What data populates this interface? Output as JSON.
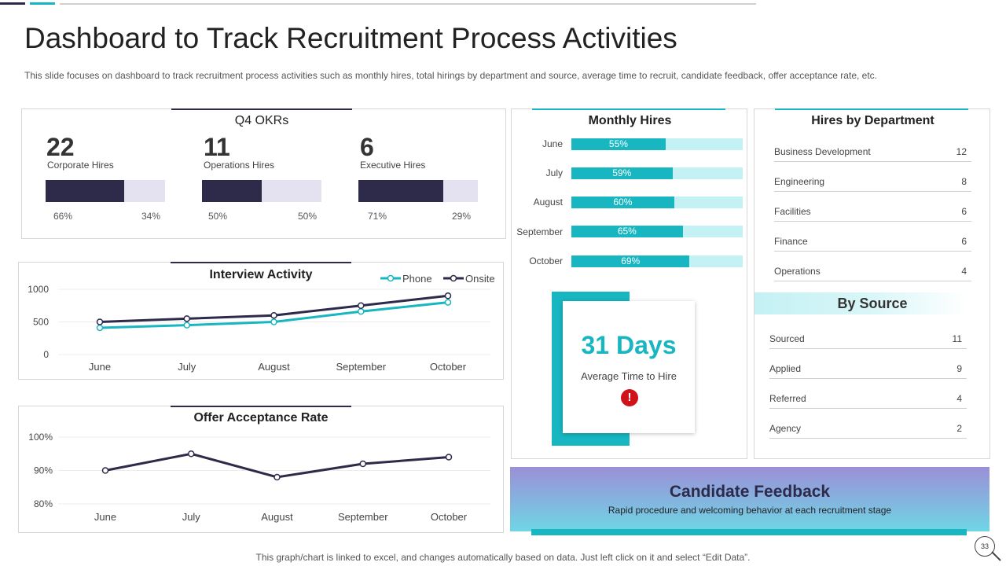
{
  "title": "Dashboard to Track Recruitment Process Activities",
  "subtitle": "This slide focuses on dashboard to track recruitment process activities such as monthly hires, total hirings by department and source, average time to recruit, candidate feedback, offer acceptance rate, etc.",
  "okr": {
    "title": "Q4 OKRs",
    "items": [
      {
        "value": "22",
        "label": "Corporate Hires",
        "filled": 66,
        "filled_label": "66%",
        "remaining_label": "34%"
      },
      {
        "value": "11",
        "label": "Operations Hires",
        "filled": 50,
        "filled_label": "50%",
        "remaining_label": "50%"
      },
      {
        "value": "6",
        "label": "Executive Hires",
        "filled": 71,
        "filled_label": "71%",
        "remaining_label": "29%"
      }
    ]
  },
  "monthly_hires": {
    "title": "Monthly Hires",
    "items": [
      {
        "month": "June",
        "value": 55,
        "label": "55%"
      },
      {
        "month": "July",
        "value": 59,
        "label": "59%"
      },
      {
        "month": "August",
        "value": 60,
        "label": "60%"
      },
      {
        "month": "September",
        "value": 65,
        "label": "65%"
      },
      {
        "month": "October",
        "value": 69,
        "label": "69%"
      }
    ]
  },
  "hires_by_department": {
    "title": "Hires by Department",
    "items": [
      {
        "name": "Business Development",
        "value": "12"
      },
      {
        "name": "Engineering",
        "value": "8"
      },
      {
        "name": "Facilities",
        "value": "6"
      },
      {
        "name": "Finance",
        "value": "6"
      },
      {
        "name": "Operations",
        "value": "4"
      }
    ]
  },
  "by_source": {
    "title": "By Source",
    "items": [
      {
        "name": "Sourced",
        "value": "11"
      },
      {
        "name": "Applied",
        "value": "9"
      },
      {
        "name": "Referred",
        "value": "4"
      },
      {
        "name": "Agency",
        "value": "2"
      }
    ]
  },
  "time_to_hire": {
    "value": "31 Days",
    "label": "Average Time to Hire",
    "icon": "exclamation-icon",
    "icon_glyph": "!"
  },
  "candidate_feedback": {
    "title": "Candidate Feedback",
    "text": "Rapid procedure  and welcoming behavior  at each recruitment stage"
  },
  "footer": "This graph/chart is linked to excel,  and changes automatically based on data. Just left click on it and select “Edit Data”.",
  "page_number": "33",
  "colors": {
    "navy": "#2d2a4a",
    "teal": "#17b6c1",
    "light_teal": "#c4f1f4",
    "alert_red": "#d0121b"
  },
  "chart_data": [
    {
      "type": "line",
      "title": "Interview Activity",
      "categories": [
        "June",
        "July",
        "August",
        "September",
        "October"
      ],
      "series": [
        {
          "name": "Phone",
          "values": [
            410,
            450,
            500,
            660,
            800
          ],
          "color": "#17b6c1"
        },
        {
          "name": "Onsite",
          "values": [
            500,
            550,
            600,
            750,
            900
          ],
          "color": "#2d2a4a"
        }
      ],
      "ylim": [
        0,
        1000
      ],
      "yticks": [
        0,
        500,
        1000
      ],
      "ytick_labels": [
        "0",
        "500",
        "1000"
      ],
      "legend": "top-right",
      "grid": true
    },
    {
      "type": "line",
      "title": "Offer Acceptance Rate",
      "categories": [
        "June",
        "July",
        "August",
        "September",
        "October"
      ],
      "series": [
        {
          "name": "Offer Acceptance Rate",
          "values": [
            90,
            95,
            88,
            92,
            94
          ],
          "color": "#2d2a4a"
        }
      ],
      "ylim": [
        80,
        100
      ],
      "yticks": [
        80,
        90,
        100
      ],
      "ytick_labels": [
        "80%",
        "90%",
        "100%"
      ],
      "grid": true
    }
  ]
}
